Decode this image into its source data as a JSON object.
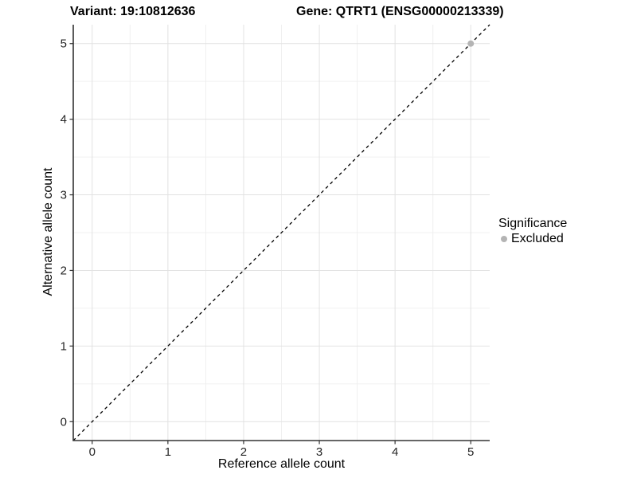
{
  "titles": {
    "left": "Variant: 19:10812636",
    "right": "Gene: QTRT1 (ENSG00000213339)"
  },
  "legend": {
    "title": "Significance",
    "items": [
      {
        "label": "Excluded",
        "color": "#b4b4b4"
      }
    ]
  },
  "chart_data": {
    "type": "scatter",
    "title": "Variant: 19:10812636 / Gene: QTRT1 (ENSG00000213339)",
    "xlabel": "Reference allele count",
    "ylabel": "Alternative allele count",
    "xlim": [
      -0.25,
      5.25
    ],
    "ylim": [
      -0.25,
      5.25
    ],
    "xticks": [
      0,
      1,
      2,
      3,
      4,
      5
    ],
    "yticks": [
      0,
      1,
      2,
      3,
      4,
      5
    ],
    "xticks_minor": [
      0.5,
      1.5,
      2.5,
      3.5,
      4.5
    ],
    "yticks_minor": [
      0.5,
      1.5,
      2.5,
      3.5,
      4.5
    ],
    "grid": "major-and-minor",
    "legend_position": "right",
    "reference_line": {
      "style": "dashed",
      "from": [
        -0.25,
        -0.25
      ],
      "to": [
        5.25,
        5.25
      ],
      "color": "#000000"
    },
    "series": [
      {
        "name": "Excluded",
        "color": "#b4b4b4",
        "points": [
          [
            5,
            5
          ]
        ]
      }
    ],
    "colors": {
      "axis_line": "#333333",
      "tick_mark": "#333333",
      "tick_label": "#262626",
      "grid_major": "#e2e2e2",
      "grid_minor": "#f0f0f0",
      "background": "#ffffff"
    }
  }
}
